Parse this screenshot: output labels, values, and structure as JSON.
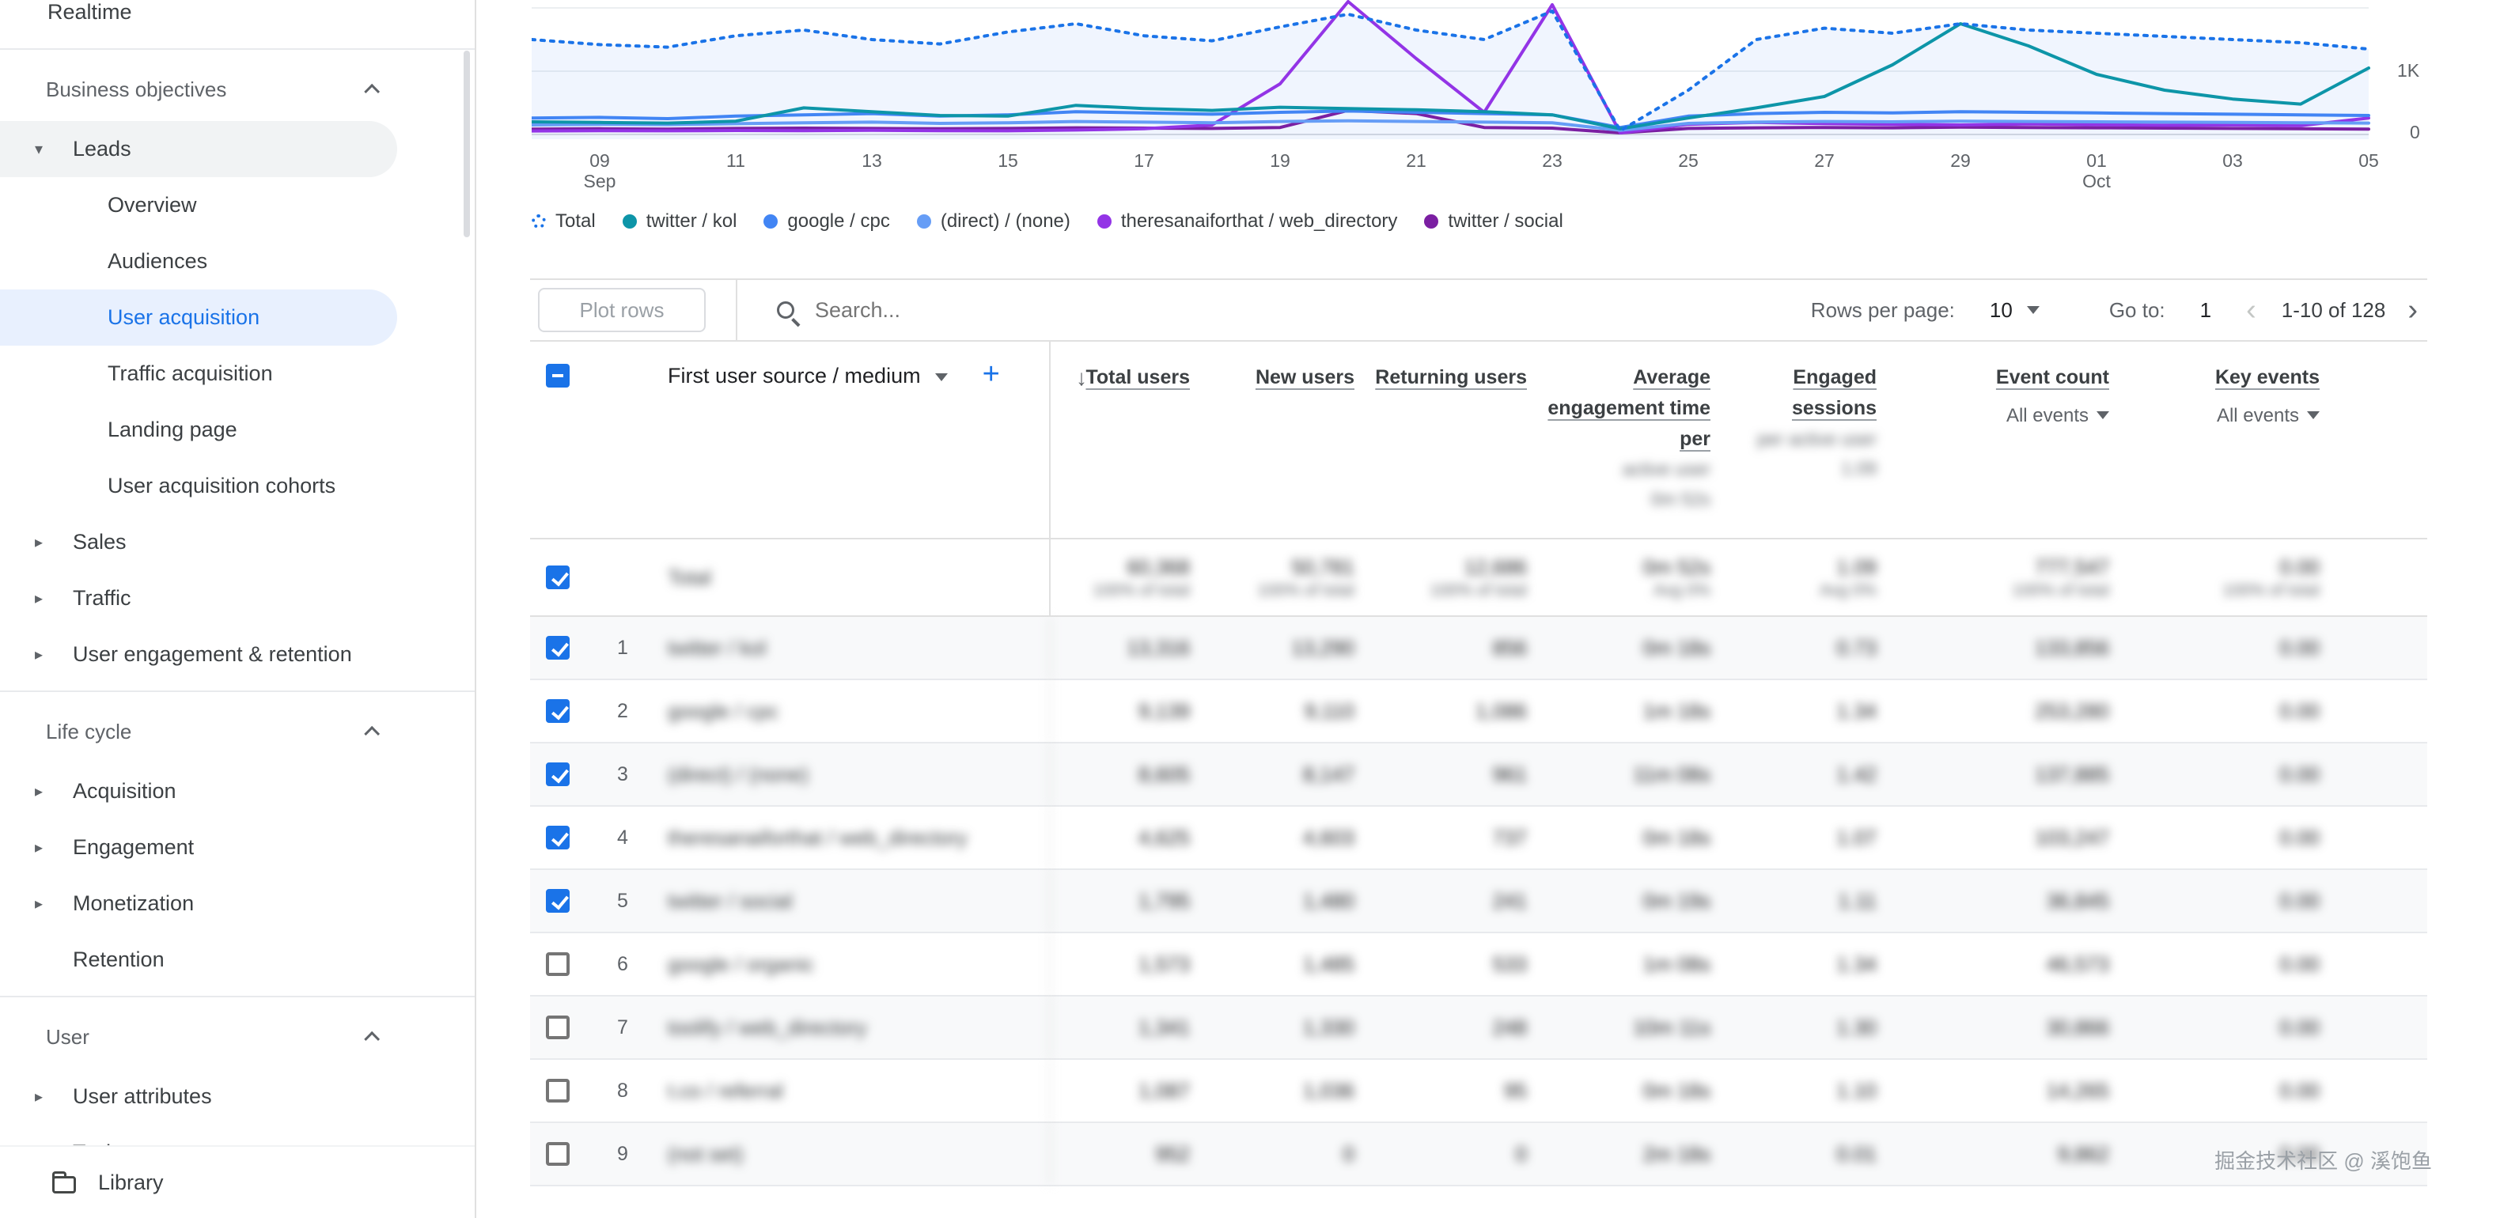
{
  "glyphs": {
    "collapsed": "▸",
    "expanded": "▾",
    "sort_desc": "↓",
    "page_prev": "‹",
    "page_next": "›",
    "plus": "+"
  },
  "sidebar": {
    "realtime": "Realtime",
    "sections": [
      {
        "title": "Business objectives",
        "items": [
          {
            "label": "Leads",
            "kind": "expanded"
          },
          {
            "label": "Overview",
            "kind": "child"
          },
          {
            "label": "Audiences",
            "kind": "child"
          },
          {
            "label": "User acquisition",
            "kind": "child",
            "selected": true
          },
          {
            "label": "Traffic acquisition",
            "kind": "child"
          },
          {
            "label": "Landing page",
            "kind": "child"
          },
          {
            "label": "User acquisition cohorts",
            "kind": "child"
          },
          {
            "label": "Sales",
            "kind": "collapsed"
          },
          {
            "label": "Traffic",
            "kind": "collapsed"
          },
          {
            "label": "User engagement & retention",
            "kind": "collapsed"
          }
        ]
      },
      {
        "title": "Life cycle",
        "items": [
          {
            "label": "Acquisition",
            "kind": "collapsed"
          },
          {
            "label": "Engagement",
            "kind": "collapsed"
          },
          {
            "label": "Monetization",
            "kind": "collapsed"
          },
          {
            "label": "Retention",
            "kind": "leaf"
          }
        ]
      },
      {
        "title": "User",
        "items": [
          {
            "label": "User attributes",
            "kind": "collapsed"
          },
          {
            "label": "Tech",
            "kind": "collapsed"
          }
        ]
      }
    ],
    "library_label": "Library"
  },
  "chart_data": {
    "type": "line",
    "title": "",
    "grid": true,
    "legend_position": "bottom",
    "ylim": [
      0,
      2125
    ],
    "y_ticks": [
      {
        "v": 0,
        "label": "0"
      },
      {
        "v": 1000,
        "label": "1K"
      }
    ],
    "x_tick_labels": [
      {
        "d": "09",
        "m": "Sep"
      },
      {
        "d": "11"
      },
      {
        "d": "13"
      },
      {
        "d": "15"
      },
      {
        "d": "17"
      },
      {
        "d": "19"
      },
      {
        "d": "21"
      },
      {
        "d": "23"
      },
      {
        "d": "25"
      },
      {
        "d": "27"
      },
      {
        "d": "29"
      },
      {
        "d": "01",
        "m": "Oct"
      },
      {
        "d": "03"
      },
      {
        "d": "05"
      }
    ],
    "series": [
      {
        "name": "Total",
        "color": "#1a73e8",
        "dashed": true,
        "values": [
          1500,
          1420,
          1380,
          1560,
          1650,
          1500,
          1430,
          1620,
          1750,
          1560,
          1480,
          1700,
          1900,
          1650,
          1500,
          1950,
          60,
          700,
          1500,
          1680,
          1600,
          1750,
          1650,
          1600,
          1550,
          1500,
          1450,
          1350
        ]
      },
      {
        "name": "twitter / kol",
        "color": "#0d95a8",
        "values": [
          200,
          190,
          180,
          210,
          420,
          360,
          300,
          290,
          460,
          410,
          380,
          430,
          410,
          390,
          360,
          310,
          90,
          260,
          420,
          600,
          1100,
          1750,
          1400,
          950,
          700,
          560,
          480,
          1050
        ]
      },
      {
        "name": "google / cpc",
        "color": "#4285f4",
        "values": [
          260,
          270,
          250,
          290,
          310,
          330,
          290,
          310,
          360,
          340,
          320,
          350,
          370,
          350,
          330,
          310,
          110,
          290,
          330,
          350,
          340,
          360,
          350,
          340,
          330,
          320,
          310,
          300
        ]
      },
      {
        "name": "(direct) / (none)",
        "color": "#669df6",
        "values": [
          150,
          160,
          155,
          170,
          185,
          195,
          175,
          185,
          205,
          195,
          185,
          205,
          215,
          205,
          195,
          185,
          65,
          175,
          195,
          205,
          200,
          210,
          205,
          200,
          195,
          190,
          185,
          180
        ]
      },
      {
        "name": "theresanaiforthat / web_directory",
        "color": "#9334e6",
        "values": [
          55,
          60,
          58,
          62,
          60,
          65,
          60,
          58,
          70,
          90,
          150,
          800,
          2100,
          1200,
          350,
          2050,
          25,
          160,
          190,
          170,
          160,
          150,
          165,
          155,
          145,
          150,
          140,
          260
        ]
      },
      {
        "name": "twitter / social",
        "color": "#7b1fa2",
        "values": [
          85,
          90,
          85,
          95,
          100,
          95,
          90,
          95,
          105,
          100,
          95,
          110,
          380,
          330,
          110,
          100,
          25,
          95,
          105,
          110,
          105,
          115,
          110,
          105,
          100,
          95,
          90,
          85
        ]
      }
    ]
  },
  "toolbar": {
    "plot_rows_label": "Plot rows",
    "search_placeholder": "Search...",
    "rows_per_page_label": "Rows per page:",
    "rows_per_page_value": "10",
    "goto_label": "Go to:",
    "goto_value": "1",
    "range_text": "1-10 of 128"
  },
  "table": {
    "dimension_header": "First user source / medium",
    "columns": [
      {
        "label": "Total users",
        "sorted": true
      },
      {
        "label": "New users"
      },
      {
        "label": "Returning users"
      },
      {
        "label": "Average engagement time per",
        "redacted": [
          "active user",
          "0m 52s"
        ]
      },
      {
        "label": "Engaged sessions",
        "redacted": [
          "per active user",
          "1.09"
        ]
      },
      {
        "label": "Event count",
        "filter": "All events"
      },
      {
        "label": "Key events",
        "filter": "All events"
      }
    ],
    "total_row": {
      "label": "Total",
      "values": [
        "60,368",
        "50,781",
        "12,686",
        "0m 52s",
        "1.09",
        "777,547",
        "0.00"
      ],
      "subs": [
        "100% of total",
        "100% of total",
        "100% of total",
        "Avg 0%",
        "Avg 0%",
        "100% of total",
        "100% of total"
      ]
    },
    "rows": [
      {
        "num": "1",
        "checked": true,
        "label": "twitter / kol",
        "values": [
          "13,316",
          "13,290",
          "856",
          "0m 18s",
          "0.73",
          "133,856",
          "0.00"
        ]
      },
      {
        "num": "2",
        "checked": true,
        "label": "google / cpc",
        "values": [
          "9,139",
          "9,110",
          "1,086",
          "1m 18s",
          "1.34",
          "253,280",
          "0.00"
        ]
      },
      {
        "num": "3",
        "checked": true,
        "label": "(direct) / (none)",
        "values": [
          "8,605",
          "8,147",
          "961",
          "11m 08s",
          "1.42",
          "137,885",
          "0.00"
        ]
      },
      {
        "num": "4",
        "checked": true,
        "label": "theresanaiforthat / web_directory",
        "values": [
          "4,625",
          "4,603",
          "737",
          "0m 18s",
          "1.07",
          "103,247",
          "0.00"
        ]
      },
      {
        "num": "5",
        "checked": true,
        "label": "twitter / social",
        "values": [
          "1,795",
          "1,480",
          "241",
          "0m 19s",
          "1.11",
          "36,845",
          "0.00"
        ]
      },
      {
        "num": "6",
        "checked": false,
        "label": "google / organic",
        "values": [
          "1,573",
          "1,485",
          "533",
          "1m 08s",
          "1.34",
          "46,573",
          "0.00"
        ]
      },
      {
        "num": "7",
        "checked": false,
        "label": "toolify / web_directory",
        "values": [
          "1,341",
          "1,330",
          "248",
          "10m 11s",
          "1.30",
          "30,866",
          "0.00"
        ]
      },
      {
        "num": "8",
        "checked": false,
        "label": "t.co / referral",
        "values": [
          "1,087",
          "1,036",
          "95",
          "0m 18s",
          "1.10",
          "14,265",
          "0.00"
        ]
      },
      {
        "num": "9",
        "checked": false,
        "label": "(not set)",
        "values": [
          "952",
          "0",
          "0",
          "2m 18s",
          "0.01",
          "9,862",
          "0.00"
        ]
      }
    ]
  },
  "watermark": "掘金技术社区 @ 溪饱鱼"
}
